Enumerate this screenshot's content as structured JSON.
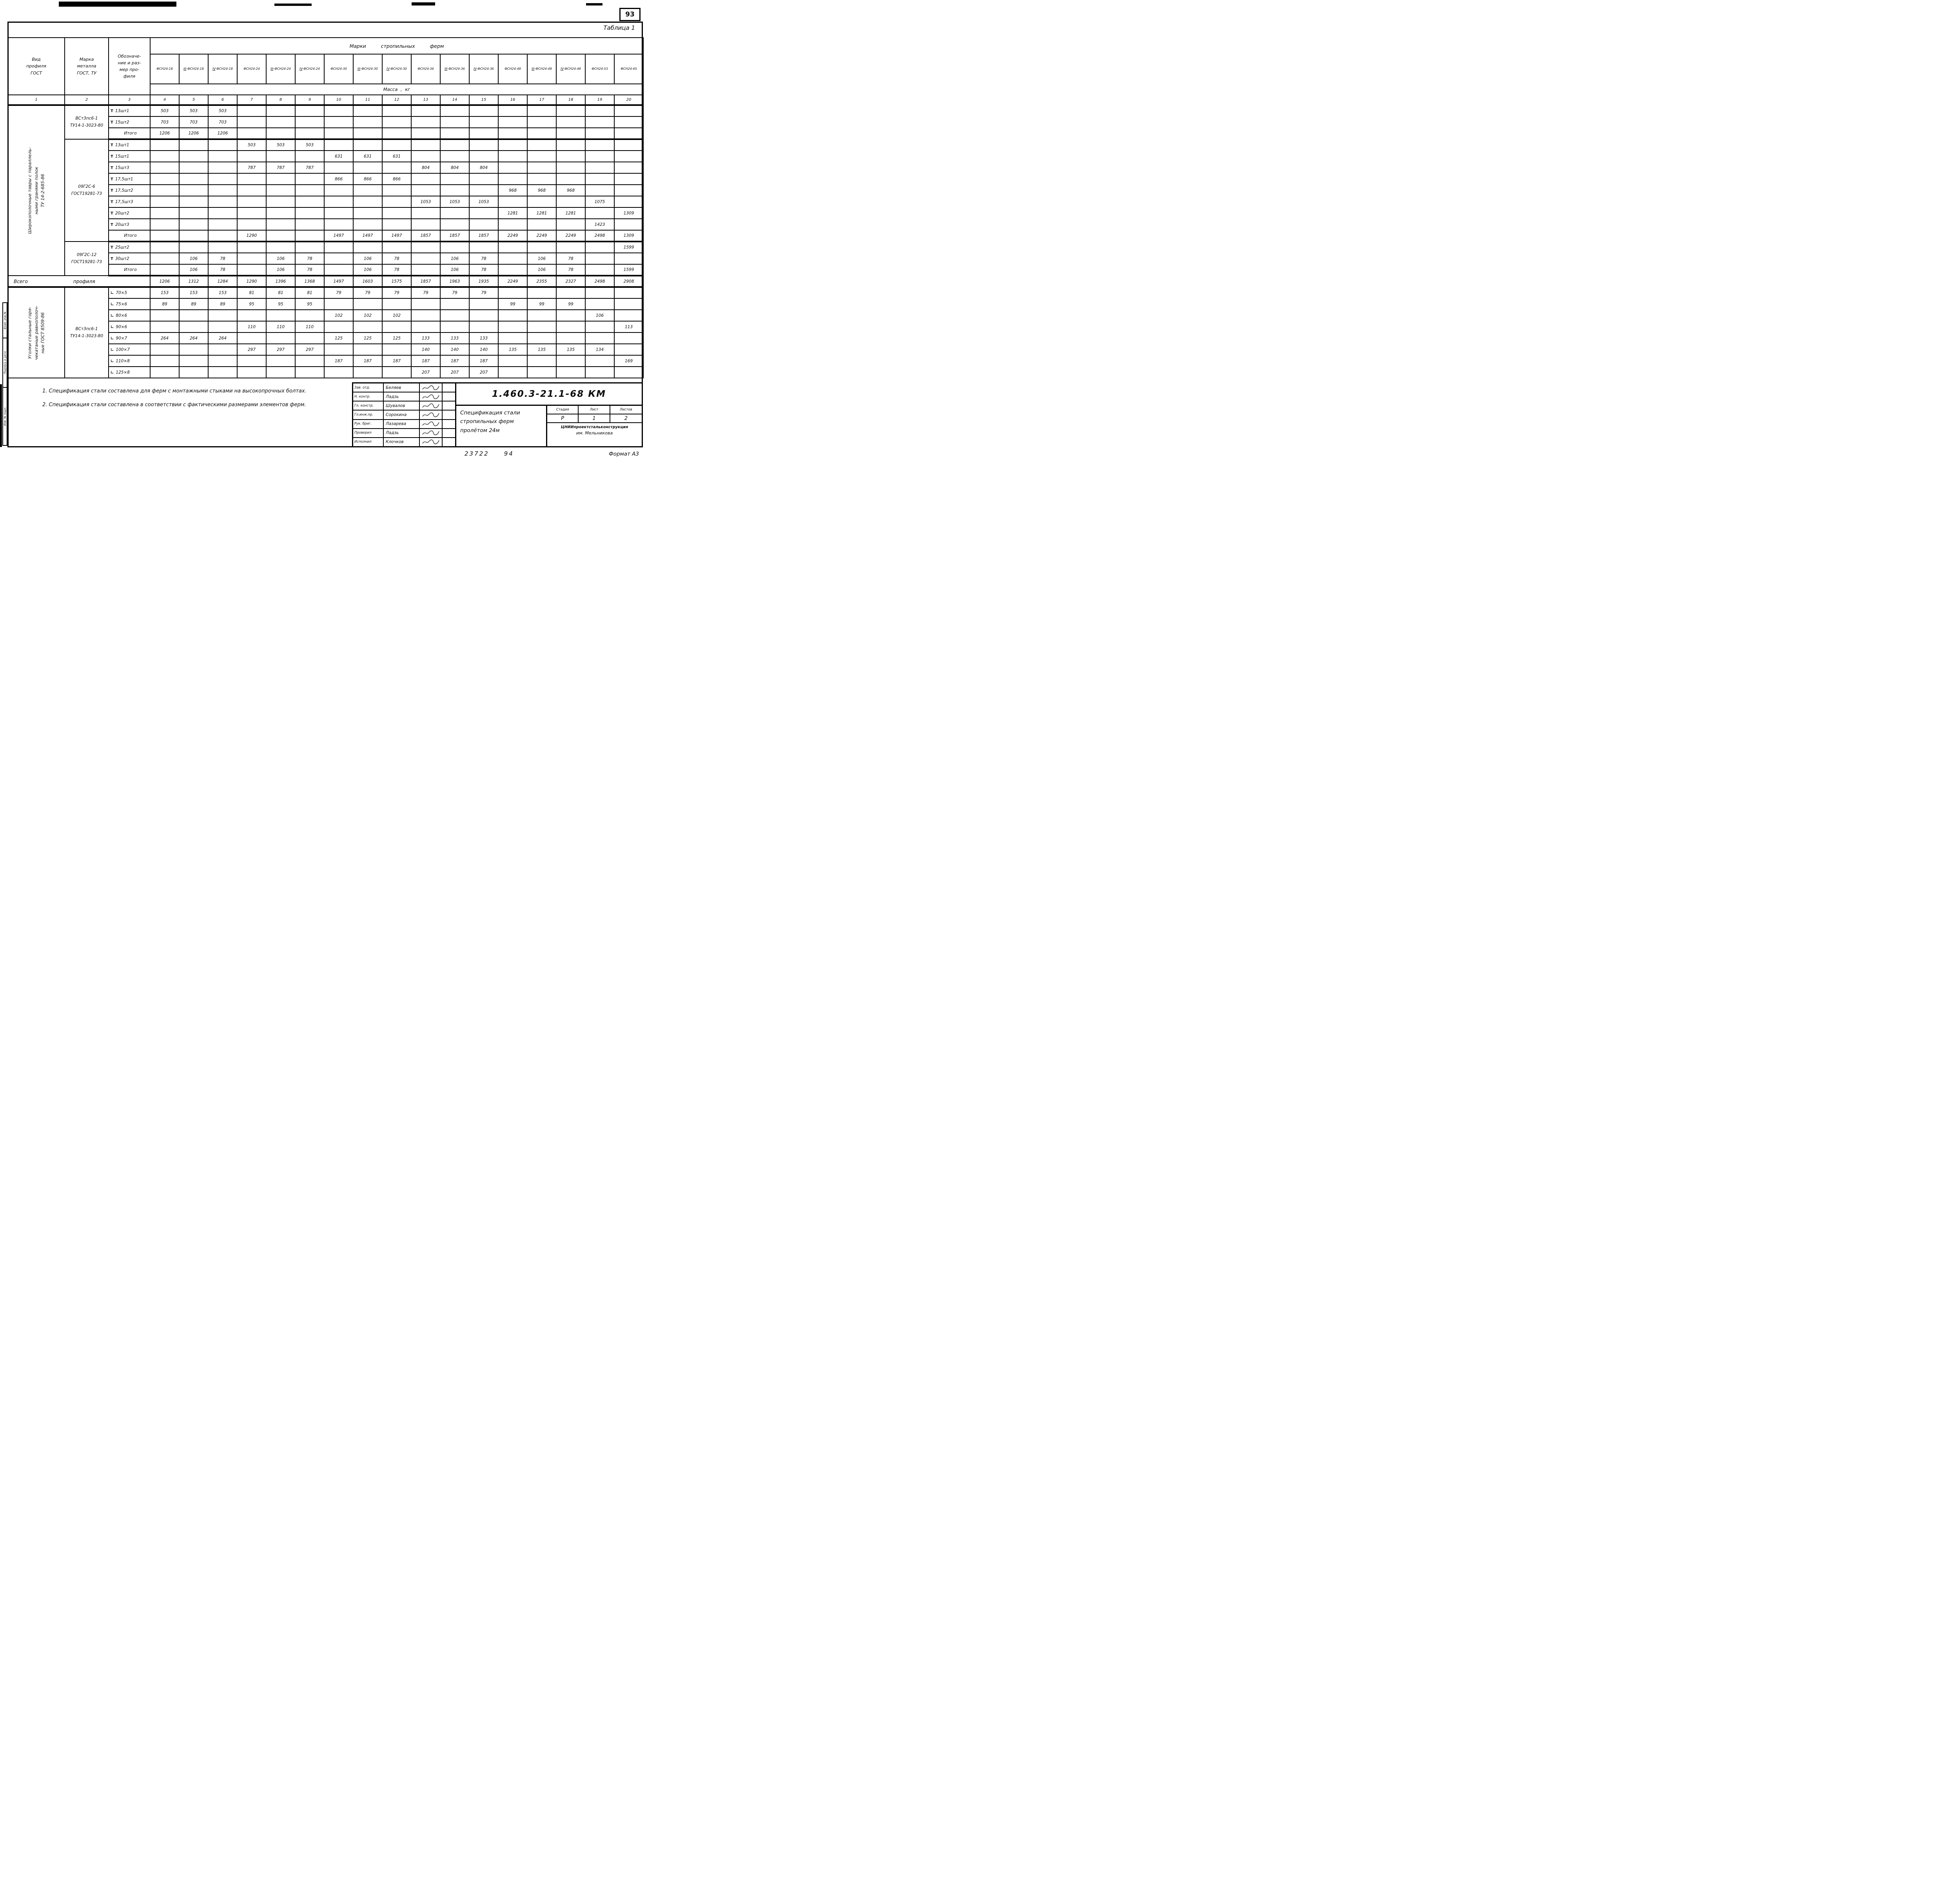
{
  "sheet": {
    "page_number": "93",
    "doc_number": "1.460.3-21.1-68 КМ",
    "title_lines": [
      "Спецификация стали",
      "стропильных ферм",
      "пролётом 24м"
    ],
    "org_line1": "ЦНИИпроектстальконструкция",
    "org_line2": "им. Мельникова",
    "stage": {
      "headers": [
        "Стадия",
        "Лист",
        "Листов"
      ],
      "values": [
        "Р",
        "1",
        "2"
      ]
    },
    "footer_number": "23722",
    "footer_number2": "94",
    "format_label": "Формат А3",
    "margin_labels": [
      "Взам. инв.№",
      "Подпись и дата",
      "Инв. № подл."
    ]
  },
  "signatures": {
    "rows": [
      {
        "role": "Зав. отд.",
        "name": "Беляев"
      },
      {
        "role": "Н. контр.",
        "name": "Ладзь"
      },
      {
        "role": "Гл. констр.",
        "name": "Шувалов"
      },
      {
        "role": "Гл.инж.пр.",
        "name": "Сорокина"
      },
      {
        "role": "Рук. бриг.",
        "name": "Лазарева"
      },
      {
        "role": "Проверил",
        "name": "Ладзь"
      },
      {
        "role": "Исполнил",
        "name": "Клочков"
      }
    ]
  },
  "notes": [
    "1. Спецификация стали составлена для ферм с монтажными стыками на высокопрочных болтах.",
    "2. Спецификация стали составлена в соответствии с фактическими размерами элементов ферм."
  ],
  "table": {
    "caption": "Таблица 1",
    "top_span": "Марки стропильных ферм",
    "mass_span": "Масса , кг",
    "col1_header": "Вид\nпрофиля\nГОСТ",
    "col2_header": "Марка\nметалла\nГОСТ, ТУ",
    "col3_header": "Обозначе-\nние и раз-\nмер про-\nфиля",
    "marks": [
      {
        "pre": "",
        "name": "ФСН24-18"
      },
      {
        "pre": "III",
        "name": "-ФСН24-18"
      },
      {
        "pre": "IV",
        "name": "-ФСН24-18"
      },
      {
        "pre": "",
        "name": "ФСН24-24"
      },
      {
        "pre": "III",
        "name": "-ФСН24-24"
      },
      {
        "pre": "IV",
        "name": "-ФСН24-24"
      },
      {
        "pre": "",
        "name": "ФСН24-30"
      },
      {
        "pre": "III",
        "name": "-ФСН24-30"
      },
      {
        "pre": "IV",
        "name": "-ФСН24-30"
      },
      {
        "pre": "",
        "name": "ФСН24-36"
      },
      {
        "pre": "III",
        "name": "-ФСН24-36"
      },
      {
        "pre": "IV",
        "name": "-ФСН24-36"
      },
      {
        "pre": "",
        "name": "ФСН24-48"
      },
      {
        "pre": "III",
        "name": "-ФСН24-48"
      },
      {
        "pre": "IV",
        "name": "-ФСН24-48"
      },
      {
        "pre": "",
        "name": "ФСН24-53"
      },
      {
        "pre": "",
        "name": "ФСН24-65"
      }
    ],
    "col_numbers": [
      "1",
      "2",
      "3",
      "4",
      "5",
      "6",
      "7",
      "8",
      "9",
      "10",
      "11",
      "12",
      "13",
      "14",
      "15",
      "16",
      "17",
      "18",
      "19",
      "20"
    ],
    "col1_groups": [
      {
        "start": 0,
        "span": 15,
        "lines": [
          "Широкополочные тавры с параллель-",
          "ными гранями полок",
          "ТУ 14-2-685-86"
        ]
      },
      {
        "start": 16,
        "span": 8,
        "lines": [
          "Уголки стальные горя-",
          "чекатаные равнополоч-",
          "ные   ГОСТ 8509-86"
        ]
      }
    ],
    "col2_groups": [
      {
        "start": 0,
        "span": 3,
        "lines": [
          "ВСт3пс6-1",
          "ТУ14-1-3023-80"
        ]
      },
      {
        "start": 3,
        "span": 9,
        "lines": [
          "09Г2С-6",
          "ГОСТ19281-73"
        ]
      },
      {
        "start": 12,
        "span": 3,
        "lines": [
          "09Г2С-12",
          "ГОСТ19281-73"
        ]
      },
      {
        "start": 16,
        "span": 8,
        "lines": [
          "ВСт3пс6-1",
          "ТУ14-1-3023-80"
        ]
      }
    ],
    "rows": [
      {
        "glyph": "Т",
        "label": "13шт1",
        "v": [
          "503",
          "503",
          "503",
          "",
          "",
          "",
          "",
          "",
          "",
          "",
          "",
          "",
          "",
          "",
          "",
          "",
          ""
        ]
      },
      {
        "glyph": "Т",
        "label": "15шт2",
        "v": [
          "703",
          "703",
          "703",
          "",
          "",
          "",
          "",
          "",
          "",
          "",
          "",
          "",
          "",
          "",
          "",
          "",
          ""
        ]
      },
      {
        "glyph": "",
        "label": "Итого",
        "sub": true,
        "heavy": true,
        "v": [
          "1206",
          "1206",
          "1206",
          "",
          "",
          "",
          "",
          "",
          "",
          "",
          "",
          "",
          "",
          "",
          "",
          "",
          ""
        ]
      },
      {
        "glyph": "Т",
        "label": "13шт1",
        "v": [
          "",
          "",
          "",
          "503",
          "503",
          "503",
          "",
          "",
          "",
          "",
          "",
          "",
          "",
          "",
          "",
          "",
          ""
        ]
      },
      {
        "glyph": "Т",
        "label": "15шт1",
        "v": [
          "",
          "",
          "",
          "",
          "",
          "",
          "631",
          "631",
          "631",
          "",
          "",
          "",
          "",
          "",
          "",
          "",
          ""
        ]
      },
      {
        "glyph": "Т",
        "label": "15шт3",
        "v": [
          "",
          "",
          "",
          "787",
          "787",
          "787",
          "",
          "",
          "",
          "804",
          "804",
          "804",
          "",
          "",
          "",
          "",
          ""
        ]
      },
      {
        "glyph": "Т",
        "label": "17,5шт1",
        "v": [
          "",
          "",
          "",
          "",
          "",
          "",
          "866",
          "866",
          "866",
          "",
          "",
          "",
          "",
          "",
          "",
          "",
          ""
        ]
      },
      {
        "glyph": "Т",
        "label": "17,5шт2",
        "v": [
          "",
          "",
          "",
          "",
          "",
          "",
          "",
          "",
          "",
          "",
          "",
          "",
          "968",
          "968",
          "968",
          "",
          ""
        ]
      },
      {
        "glyph": "Т",
        "label": "17,5шт3",
        "v": [
          "",
          "",
          "",
          "",
          "",
          "",
          "",
          "",
          "",
          "1053",
          "1053",
          "1053",
          "",
          "",
          "",
          "1075",
          ""
        ]
      },
      {
        "glyph": "Т",
        "label": "20шт2",
        "v": [
          "",
          "",
          "",
          "",
          "",
          "",
          "",
          "",
          "",
          "",
          "",
          "",
          "1281",
          "1281",
          "1281",
          "",
          "1309"
        ]
      },
      {
        "glyph": "Т",
        "label": "20шт3",
        "v": [
          "",
          "",
          "",
          "",
          "",
          "",
          "",
          "",
          "",
          "",
          "",
          "",
          "",
          "",
          "",
          "1423",
          ""
        ]
      },
      {
        "glyph": "",
        "label": "Итого",
        "sub": true,
        "heavy": true,
        "v": [
          "",
          "",
          "",
          "1290",
          "",
          "",
          "1497",
          "1497",
          "1497",
          "1857",
          "1857",
          "1857",
          "2249",
          "2249",
          "2249",
          "2498",
          "1309"
        ]
      },
      {
        "glyph": "Т",
        "label": "25шт2",
        "v": [
          "",
          "",
          "",
          "",
          "",
          "",
          "",
          "",
          "",
          "",
          "",
          "",
          "",
          "",
          "",
          "",
          "1599"
        ]
      },
      {
        "glyph": "Т",
        "label": "30шт2",
        "v": [
          "",
          "106",
          "78",
          "",
          "106",
          "78",
          "",
          "106",
          "78",
          "",
          "106",
          "78",
          "",
          "106",
          "78",
          "",
          ""
        ]
      },
      {
        "glyph": "",
        "label": "Итого",
        "sub": true,
        "heavy": true,
        "v": [
          "",
          "106",
          "78",
          "",
          "106",
          "78",
          "",
          "106",
          "78",
          "",
          "106",
          "78",
          "",
          "106",
          "78",
          "",
          "1599"
        ]
      },
      {
        "total": true,
        "label1": "Всего",
        "label2": "профиля",
        "heavy": true,
        "v": [
          "1206",
          "1312",
          "1284",
          "1290",
          "1396",
          "1368",
          "1497",
          "1603",
          "1575",
          "1857",
          "1963",
          "1935",
          "2249",
          "2355",
          "2327",
          "2498",
          "2908"
        ]
      },
      {
        "glyph": "∟",
        "label": "70×5",
        "v": [
          "153",
          "153",
          "153",
          "81",
          "81",
          "81",
          "79",
          "79",
          "79",
          "79",
          "79",
          "79",
          "",
          "",
          "",
          "",
          ""
        ]
      },
      {
        "glyph": "∟",
        "label": "75×6",
        "v": [
          "89",
          "89",
          "89",
          "95",
          "95",
          "95",
          "",
          "",
          "",
          "",
          "",
          "",
          "99",
          "99",
          "99",
          "",
          ""
        ]
      },
      {
        "glyph": "∟",
        "label": "80×6",
        "v": [
          "",
          "",
          "",
          "",
          "",
          "",
          "102",
          "102",
          "102",
          "",
          "",
          "",
          "",
          "",
          "",
          "106",
          ""
        ]
      },
      {
        "glyph": "∟",
        "label": "90×6",
        "v": [
          "",
          "",
          "",
          "110",
          "110",
          "110",
          "",
          "",
          "",
          "",
          "",
          "",
          "",
          "",
          "",
          "",
          "113"
        ]
      },
      {
        "glyph": "∟",
        "label": "90×7",
        "v": [
          "264",
          "264",
          "264",
          "",
          "",
          "",
          "125",
          "125",
          "125",
          "133",
          "133",
          "133",
          "",
          "",
          "",
          "",
          ""
        ]
      },
      {
        "glyph": "∟",
        "label": "100×7",
        "v": [
          "",
          "",
          "",
          "297",
          "297",
          "297",
          "",
          "",
          "",
          "140",
          "140",
          "140",
          "135",
          "135",
          "135",
          "134",
          ""
        ]
      },
      {
        "glyph": "∟",
        "label": "110×8",
        "v": [
          "",
          "",
          "",
          "",
          "",
          "",
          "187",
          "187",
          "187",
          "187",
          "187",
          "187",
          "",
          "",
          "",
          "",
          "169"
        ]
      },
      {
        "glyph": "∟",
        "label": "125×8",
        "v": [
          "",
          "",
          "",
          "",
          "",
          "",
          "",
          "",
          "",
          "207",
          "207",
          "207",
          "",
          "",
          "",
          "",
          ""
        ]
      }
    ]
  }
}
